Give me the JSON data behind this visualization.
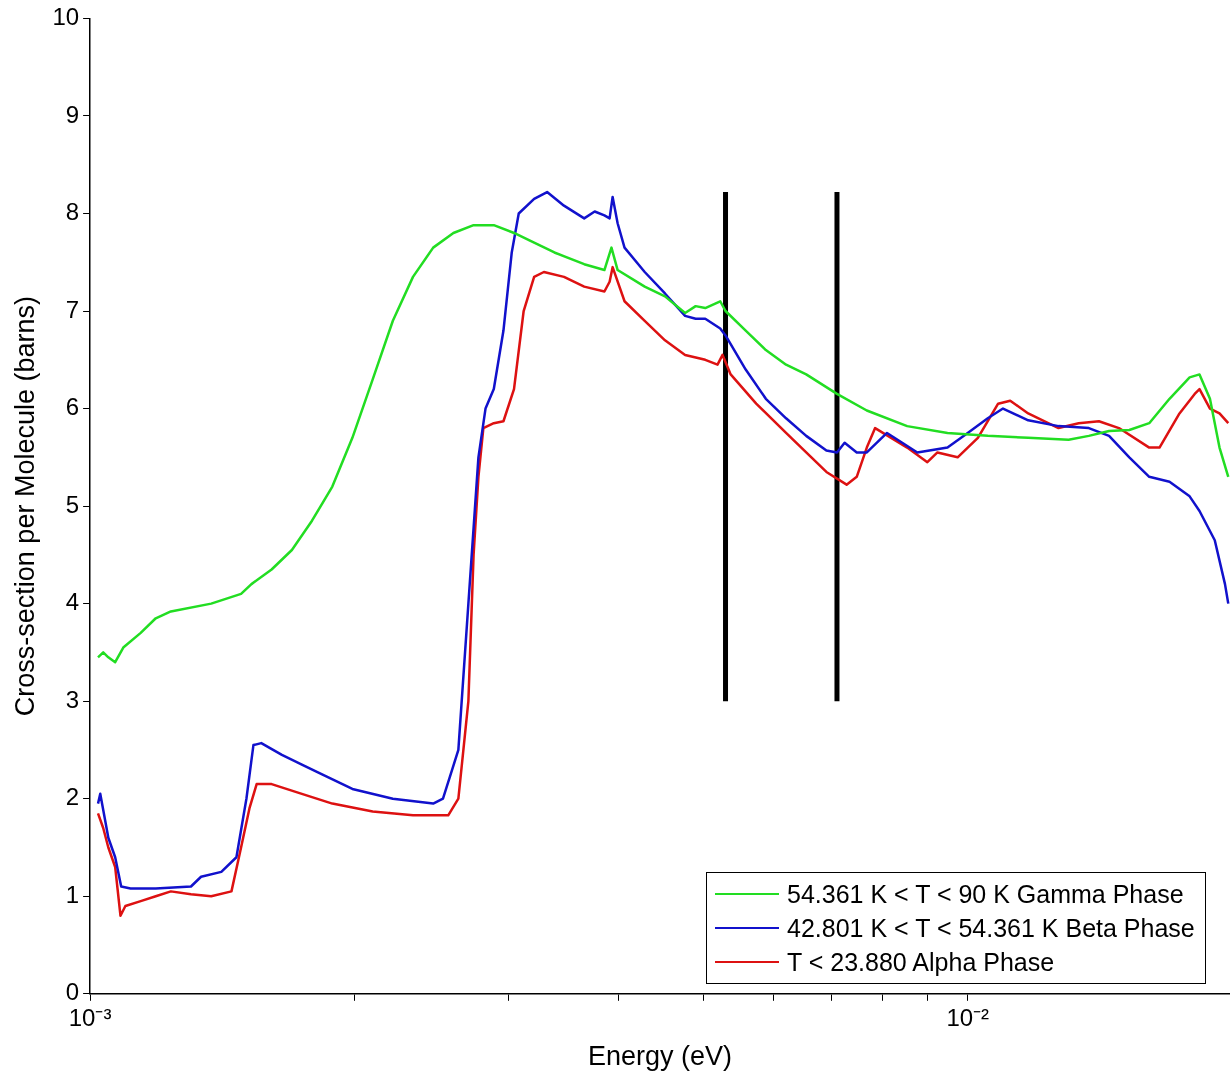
{
  "chart_data": {
    "type": "line",
    "xlabel": "Energy (eV)",
    "ylabel": "Cross-section per Molecule (barns)",
    "log": "x",
    "legend": "bottom right",
    "marker": "none",
    "line_style": "solid",
    "xlim": [
      0.001,
      0.0199
    ],
    "ylim": [
      0,
      10
    ],
    "xticks": [
      {
        "value": 0.001,
        "label": "10⁻³"
      },
      {
        "value": 0.002,
        "label": null
      },
      {
        "value": 0.003,
        "label": null
      },
      {
        "value": 0.004,
        "label": null
      },
      {
        "value": 0.005,
        "label": null
      },
      {
        "value": 0.006,
        "label": null
      },
      {
        "value": 0.007,
        "label": null
      },
      {
        "value": 0.008,
        "label": null
      },
      {
        "value": 0.009,
        "label": null
      },
      {
        "value": 0.01,
        "label": "10⁻²"
      }
    ],
    "yticks": [
      0,
      1,
      2,
      3,
      4,
      5,
      6,
      7,
      8,
      9,
      10
    ],
    "series": [
      {
        "name": "54.361 K < T < 90 K Gamma Phase",
        "color": "#22dd22",
        "x": [
          0.001021,
          0.001035,
          0.001049,
          0.001068,
          0.001091,
          0.001142,
          0.001188,
          0.001236,
          0.001374,
          0.001486,
          0.001527,
          0.00161,
          0.001698,
          0.00179,
          0.001888,
          0.00199,
          0.002099,
          0.002213,
          0.002333,
          0.00246,
          0.002594,
          0.002735,
          0.002884,
          0.003041,
          0.003206,
          0.003381,
          0.003656,
          0.003855,
          0.003927,
          0.003991,
          0.004285,
          0.004519,
          0.004764,
          0.004898,
          0.005023,
          0.005224,
          0.005297,
          0.005585,
          0.005888,
          0.006209,
          0.006546,
          0.007096,
          0.007674,
          0.008531,
          0.009484,
          0.01054,
          0.01172,
          0.01303,
          0.01374,
          0.01449,
          0.01528,
          0.0161,
          0.01698,
          0.0179,
          0.01837,
          0.01888,
          0.01936,
          0.01981
        ],
        "values": [
          3.45,
          3.5,
          3.45,
          3.4,
          3.55,
          3.7,
          3.85,
          3.92,
          4.0,
          4.1,
          4.2,
          4.35,
          4.55,
          4.85,
          5.2,
          5.7,
          6.3,
          6.9,
          7.35,
          7.65,
          7.8,
          7.88,
          7.88,
          7.8,
          7.7,
          7.6,
          7.48,
          7.42,
          7.65,
          7.42,
          7.25,
          7.15,
          6.98,
          7.05,
          7.03,
          7.1,
          7.0,
          6.8,
          6.6,
          6.45,
          6.35,
          6.15,
          5.98,
          5.82,
          5.75,
          5.72,
          5.7,
          5.68,
          5.72,
          5.77,
          5.78,
          5.85,
          6.1,
          6.32,
          6.35,
          6.1,
          5.6,
          5.3
        ]
      },
      {
        "name": "42.801 K < T < 54.361 K Beta Phase",
        "color": "#1111cc",
        "x": [
          0.001021,
          0.001027,
          0.001049,
          0.001068,
          0.001085,
          0.001112,
          0.001188,
          0.001303,
          0.001338,
          0.001411,
          0.001468,
          0.001507,
          0.001535,
          0.001567,
          0.001654,
          0.001743,
          0.001838,
          0.00199,
          0.002213,
          0.00246,
          0.002524,
          0.002628,
          0.002698,
          0.00277,
          0.002822,
          0.002884,
          0.002958,
          0.003023,
          0.003079,
          0.003206,
          0.003317,
          0.003467,
          0.003656,
          0.003758,
          0.003855,
          0.003908,
          0.003939,
          0.003991,
          0.004064,
          0.004285,
          0.004519,
          0.004764,
          0.004898,
          0.005023,
          0.005224,
          0.005297,
          0.005585,
          0.005888,
          0.006209,
          0.006546,
          0.006902,
          0.007096,
          0.00724,
          0.007474,
          0.007674,
          0.008091,
          0.008421,
          0.008762,
          0.009484,
          0.01,
          0.01054,
          0.01097,
          0.01172,
          0.01269,
          0.01374,
          0.01449,
          0.01528,
          0.0161,
          0.01698,
          0.0179,
          0.01837,
          0.01912,
          0.01964,
          0.01981
        ],
        "values": [
          1.95,
          2.05,
          1.6,
          1.4,
          1.1,
          1.08,
          1.08,
          1.1,
          1.2,
          1.25,
          1.4,
          2.0,
          2.55,
          2.57,
          2.45,
          2.35,
          2.25,
          2.1,
          2.0,
          1.95,
          2.0,
          2.5,
          4.0,
          5.5,
          6.0,
          6.2,
          6.8,
          7.6,
          8.0,
          8.15,
          8.22,
          8.08,
          7.95,
          8.02,
          7.98,
          7.95,
          8.17,
          7.9,
          7.65,
          7.4,
          7.18,
          6.95,
          6.92,
          6.92,
          6.82,
          6.75,
          6.4,
          6.1,
          5.9,
          5.72,
          5.57,
          5.55,
          5.65,
          5.55,
          5.55,
          5.75,
          5.65,
          5.55,
          5.6,
          5.75,
          5.9,
          6.0,
          5.88,
          5.82,
          5.8,
          5.72,
          5.5,
          5.3,
          5.25,
          5.1,
          4.95,
          4.65,
          4.2,
          4.0
        ]
      },
      {
        "name": "T < 23.880 Alpha Phase",
        "color": "#dd1111",
        "x": [
          0.001021,
          0.001035,
          0.001049,
          0.001068,
          0.001083,
          0.001097,
          0.001142,
          0.001188,
          0.001236,
          0.001303,
          0.001374,
          0.001449,
          0.001486,
          0.001519,
          0.001548,
          0.00161,
          0.001743,
          0.001888,
          0.002099,
          0.002333,
          0.002559,
          0.002628,
          0.002698,
          0.002735,
          0.00277,
          0.002806,
          0.002884,
          0.002958,
          0.003041,
          0.003119,
          0.003206,
          0.003289,
          0.003467,
          0.003656,
          0.003855,
          0.003908,
          0.003939,
          0.004064,
          0.004285,
          0.004519,
          0.004764,
          0.005023,
          0.005187,
          0.005256,
          0.005369,
          0.005741,
          0.006209,
          0.006546,
          0.006902,
          0.007278,
          0.007474,
          0.007674,
          0.007843,
          0.008531,
          0.008995,
          0.009236,
          0.009739,
          0.01027,
          0.01083,
          0.01118,
          0.01172,
          0.01269,
          0.01338,
          0.01411,
          0.01487,
          0.0161,
          0.01654,
          0.01743,
          0.01814,
          0.01837,
          0.01888,
          0.01936,
          0.01981
        ],
        "values": [
          1.85,
          1.7,
          1.5,
          1.3,
          0.8,
          0.9,
          0.95,
          1.0,
          1.05,
          1.02,
          1.0,
          1.05,
          1.5,
          1.9,
          2.15,
          2.15,
          2.05,
          1.95,
          1.87,
          1.83,
          1.83,
          2.0,
          3.0,
          4.5,
          5.3,
          5.8,
          5.85,
          5.87,
          6.2,
          7.0,
          7.35,
          7.4,
          7.35,
          7.25,
          7.2,
          7.3,
          7.45,
          7.1,
          6.9,
          6.7,
          6.55,
          6.5,
          6.45,
          6.55,
          6.35,
          6.05,
          5.75,
          5.55,
          5.35,
          5.22,
          5.3,
          5.6,
          5.8,
          5.6,
          5.45,
          5.55,
          5.5,
          5.7,
          6.05,
          6.08,
          5.95,
          5.8,
          5.85,
          5.87,
          5.8,
          5.6,
          5.6,
          5.95,
          6.15,
          6.2,
          6.0,
          5.95,
          5.85
        ]
      },
      {
        "type": "line",
        "color": "#000000",
        "x": [
          0.005297,
          0.005297
        ],
        "values": [
          3,
          8.22
        ]
      },
      {
        "type": "line",
        "color": "#000000",
        "x": [
          0.007096,
          0.007096
        ],
        "values": [
          3,
          8.22
        ]
      }
    ]
  }
}
